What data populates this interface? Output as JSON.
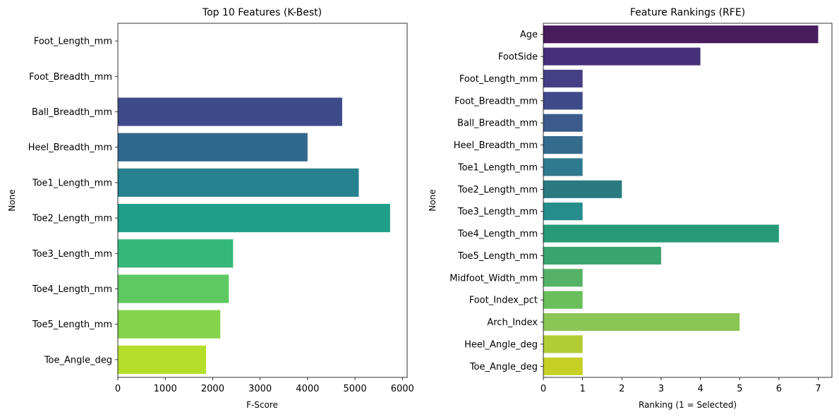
{
  "chart_data": [
    {
      "type": "bar",
      "orientation": "horizontal",
      "title": "Top 10 Features (K-Best)",
      "xlabel": "F-Score",
      "ylabel": "None",
      "xlim": [
        0,
        6100
      ],
      "xticks": [
        0,
        1000,
        2000,
        3000,
        4000,
        5000,
        6000
      ],
      "xtick_labels": [
        "0",
        "1000",
        "2000",
        "3000",
        "4000",
        "5000",
        "6000"
      ],
      "categories": [
        "Foot_Length_mm",
        "Foot_Breadth_mm",
        "Ball_Breadth_mm",
        "Heel_Breadth_mm",
        "Toe1_Length_mm",
        "Toe2_Length_mm",
        "Toe3_Length_mm",
        "Toe4_Length_mm",
        "Toe5_Length_mm",
        "Toe_Angle_deg"
      ],
      "values": [
        0,
        0,
        4730,
        4000,
        5080,
        5740,
        2430,
        2340,
        2160,
        1860
      ],
      "colors": [
        "#482878",
        "#3e4989",
        "#3e4a89",
        "#31688e",
        "#26828e",
        "#1f9e89",
        "#35b779",
        "#5ec962",
        "#84d44b",
        "#b5de2b"
      ],
      "grid": false,
      "legend": "none"
    },
    {
      "type": "bar",
      "orientation": "horizontal",
      "title": "Feature Rankings (RFE)",
      "xlabel": "Ranking (1 = Selected)",
      "ylabel": "None",
      "xlim": [
        0,
        7.35
      ],
      "xticks": [
        0,
        1,
        2,
        3,
        4,
        5,
        6,
        7
      ],
      "xtick_labels": [
        "0",
        "1",
        "2",
        "3",
        "4",
        "5",
        "6",
        "7"
      ],
      "categories": [
        "Age",
        "FootSide",
        "Foot_Length_mm",
        "Foot_Breadth_mm",
        "Ball_Breadth_mm",
        "Heel_Breadth_mm",
        "Toe1_Length_mm",
        "Toe2_Length_mm",
        "Toe3_Length_mm",
        "Toe4_Length_mm",
        "Toe5_Length_mm",
        "Midfoot_Width_mm",
        "Foot_Index_pct",
        "Arch_Index",
        "Heel_Angle_deg",
        "Toe_Angle_deg"
      ],
      "values": [
        7,
        4,
        1,
        1,
        1,
        1,
        1,
        2,
        1,
        6,
        3,
        1,
        1,
        5,
        1,
        1
      ],
      "colors": [
        "#471d5d",
        "#47307a",
        "#453f85",
        "#3f4a8a",
        "#3c5b8c",
        "#356b8d",
        "#2f7a8e",
        "#2a7b7f",
        "#258d8c",
        "#279a78",
        "#3aa56f",
        "#55b267",
        "#6abe5c",
        "#8bc556",
        "#b0cd34",
        "#c6cf23"
      ],
      "grid": false,
      "legend": "none"
    }
  ]
}
